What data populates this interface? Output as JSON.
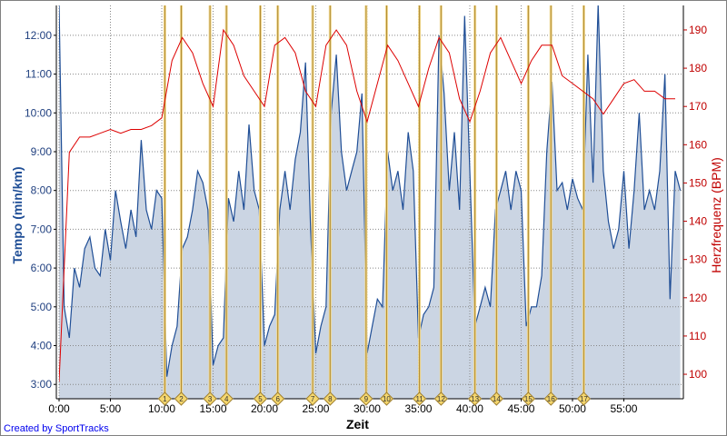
{
  "chart_data": {
    "type": "line",
    "title": "",
    "xlabel": "Zeit",
    "ylabel_left": "Tempo (min/km)",
    "ylabel_right": "Herzfrequenz (BPM)",
    "x_unit": "minutes",
    "xlim": [
      0,
      60.8
    ],
    "ylim_left": [
      2.63,
      12.77
    ],
    "ylim_right": [
      93.6,
      196.4
    ],
    "grid": true,
    "x_ticks": [
      {
        "v": 0,
        "label": "0:00"
      },
      {
        "v": 5,
        "label": "5:00"
      },
      {
        "v": 10,
        "label": "10:00"
      },
      {
        "v": 15,
        "label": "15:00"
      },
      {
        "v": 20,
        "label": "20:00"
      },
      {
        "v": 25,
        "label": "25:00"
      },
      {
        "v": 30,
        "label": "30:00"
      },
      {
        "v": 35,
        "label": "35:00"
      },
      {
        "v": 40,
        "label": "40:00"
      },
      {
        "v": 45,
        "label": "45:00"
      },
      {
        "v": 50,
        "label": "50:00"
      },
      {
        "v": 55,
        "label": "55:00"
      }
    ],
    "y_ticks_left": [
      {
        "v": 3,
        "label": "3:00"
      },
      {
        "v": 4,
        "label": "4:00"
      },
      {
        "v": 5,
        "label": "5:00"
      },
      {
        "v": 6,
        "label": "6:00"
      },
      {
        "v": 7,
        "label": "7:00"
      },
      {
        "v": 8,
        "label": "8:00"
      },
      {
        "v": 9,
        "label": "9:00"
      },
      {
        "v": 10,
        "label": "10:00"
      },
      {
        "v": 11,
        "label": "11:00"
      },
      {
        "v": 12,
        "label": "12:00"
      }
    ],
    "y_ticks_right": [
      {
        "v": 100,
        "label": "100"
      },
      {
        "v": 110,
        "label": "110"
      },
      {
        "v": 120,
        "label": "120"
      },
      {
        "v": 130,
        "label": "130"
      },
      {
        "v": 140,
        "label": "140"
      },
      {
        "v": 150,
        "label": "150"
      },
      {
        "v": 160,
        "label": "160"
      },
      {
        "v": 170,
        "label": "170"
      },
      {
        "v": 180,
        "label": "180"
      },
      {
        "v": 190,
        "label": "190"
      }
    ],
    "series": [
      {
        "name": "Tempo",
        "axis": "left",
        "color": "#1f4e96",
        "fill": "#cbd5e3",
        "time_step_min": 0.5,
        "values": [
          12.8,
          5,
          4.2,
          6,
          5.5,
          6.5,
          6.8,
          6,
          5.8,
          7,
          6.2,
          8,
          7.2,
          6.5,
          7.5,
          6.8,
          9.3,
          7.5,
          7,
          8,
          7.8,
          3.2,
          4.0,
          4.5,
          6.5,
          6.8,
          7.5,
          8.5,
          8.2,
          7.5,
          3.5,
          4.0,
          4.2,
          7.8,
          7.2,
          8.5,
          7.5,
          9.7,
          8,
          7.5,
          4.0,
          4.5,
          4.8,
          7.5,
          8.5,
          7.5,
          8.8,
          9.5,
          11.3,
          7,
          3.8,
          4.5,
          5.0,
          10,
          11.5,
          9,
          8,
          8.5,
          9,
          10.5,
          3.8,
          4.5,
          5.2,
          5,
          9,
          8,
          8.5,
          7.5,
          9.5,
          8.5,
          4.2,
          4.8,
          5,
          5.5,
          12,
          10.5,
          8,
          9.5,
          7.5,
          12.5,
          8.5,
          4.5,
          5,
          5.5,
          5,
          7.5,
          8,
          8.5,
          7.5,
          8.5,
          8,
          4.5,
          5,
          5,
          5.8,
          9,
          10.8,
          8,
          8.2,
          7.5,
          8.3,
          7.8,
          7.5,
          11.5,
          8.2,
          12.8,
          8.5,
          7.2,
          6.5,
          7,
          8.5,
          6.5,
          8,
          10,
          7.5,
          8,
          7.5,
          8.5,
          11,
          5.2,
          8.5,
          8
        ]
      },
      {
        "name": "Herzfrequenz",
        "axis": "right",
        "color": "#dd0000",
        "time_step_min": 1,
        "values": [
          98,
          158,
          162,
          162,
          163,
          164,
          163,
          164,
          164,
          165,
          167,
          182,
          188,
          184,
          176,
          170,
          190,
          186,
          178,
          174,
          170,
          186,
          188,
          184,
          174,
          170,
          186,
          190,
          186,
          174,
          166,
          176,
          186,
          182,
          176,
          170,
          180,
          188,
          184,
          172,
          166,
          174,
          184,
          188,
          182,
          176,
          182,
          186,
          186,
          178,
          176,
          174,
          172,
          168,
          172,
          176,
          177,
          174,
          174,
          172,
          172
        ]
      }
    ],
    "laps": [
      {
        "label": "1",
        "t": 10.3
      },
      {
        "label": "2",
        "t": 11.9
      },
      {
        "label": "3",
        "t": 14.7
      },
      {
        "label": "4",
        "t": 16.3
      },
      {
        "label": "5",
        "t": 19.6
      },
      {
        "label": "6",
        "t": 21.3
      },
      {
        "label": "7",
        "t": 24.7
      },
      {
        "label": "8",
        "t": 26.4
      },
      {
        "label": "9",
        "t": 29.9
      },
      {
        "label": "10",
        "t": 31.9
      },
      {
        "label": "11",
        "t": 35.1
      },
      {
        "label": "12",
        "t": 37.2
      },
      {
        "label": "13",
        "t": 40.5
      },
      {
        "label": "14",
        "t": 42.6
      },
      {
        "label": "15",
        "t": 45.7
      },
      {
        "label": "16",
        "t": 47.9
      },
      {
        "label": "17",
        "t": 51.1
      }
    ]
  },
  "footer": {
    "credit": "Created by SportTracks"
  }
}
